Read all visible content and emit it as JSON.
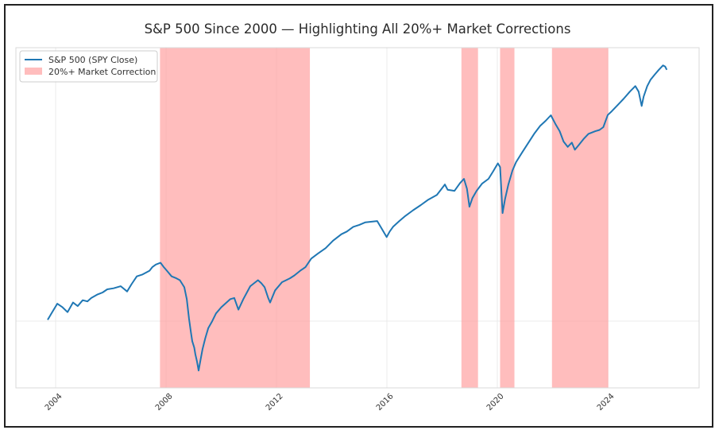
{
  "chart_data": {
    "type": "line",
    "title": "S&P 500 Since 2000 — Highlighting All 20%+ Market Corrections",
    "xlabel": "",
    "ylabel": "",
    "y_scale": "log",
    "y_tick_labels_visible": false,
    "xlim": [
      2002.56,
      2027.31
    ],
    "ylim": [
      60.6,
      779
    ],
    "y_gridlines": [
      100
    ],
    "x_ticks": [
      2004,
      2008,
      2012,
      2016,
      2020,
      2024
    ],
    "x_tick_labels": [
      "2004",
      "2008",
      "2012",
      "2016",
      "2020",
      "2024"
    ],
    "grid": true,
    "legend": {
      "placement": "top-left",
      "entries": [
        {
          "label": "S&P 500 (SPY Close)",
          "kind": "line",
          "color": "#1f77b4"
        },
        {
          "label": "20%+ Market Correction",
          "kind": "patch",
          "color": "#ff9999"
        }
      ]
    },
    "corrections": [
      {
        "start": 2007.78,
        "end": 2013.21
      },
      {
        "start": 2018.7,
        "end": 2019.3
      },
      {
        "start": 2020.1,
        "end": 2020.62
      },
      {
        "start": 2021.98,
        "end": 2024.02
      }
    ],
    "series": [
      {
        "name": "S&P 500 (SPY Close)",
        "color": "#1f77b4",
        "x": [
          2003.71,
          2003.85,
          2004.06,
          2004.25,
          2004.43,
          2004.63,
          2004.8,
          2004.98,
          2005.15,
          2005.29,
          2005.5,
          2005.7,
          2005.87,
          2006.1,
          2006.36,
          2006.59,
          2006.75,
          2006.94,
          2007.15,
          2007.4,
          2007.5,
          2007.63,
          2007.8,
          2007.92,
          2008.03,
          2008.2,
          2008.37,
          2008.5,
          2008.66,
          2008.75,
          2008.83,
          2008.9,
          2008.95,
          2009.02,
          2009.06,
          2009.12,
          2009.18,
          2009.25,
          2009.32,
          2009.42,
          2009.53,
          2009.67,
          2009.81,
          2010.0,
          2010.19,
          2010.33,
          2010.47,
          2010.62,
          2010.8,
          2011.05,
          2011.33,
          2011.45,
          2011.57,
          2011.7,
          2011.77,
          2011.95,
          2012.2,
          2012.35,
          2012.49,
          2012.65,
          2012.86,
          2013.05,
          2013.26,
          2013.5,
          2013.78,
          2014.05,
          2014.35,
          2014.55,
          2014.78,
          2015.0,
          2015.22,
          2015.45,
          2015.65,
          2015.8,
          2015.99,
          2016.1,
          2016.22,
          2016.45,
          2016.66,
          2016.95,
          2017.23,
          2017.5,
          2017.81,
          2017.98,
          2018.1,
          2018.2,
          2018.45,
          2018.65,
          2018.79,
          2018.9,
          2018.99,
          2019.1,
          2019.25,
          2019.45,
          2019.68,
          2019.85,
          2020.02,
          2020.1,
          2020.19,
          2020.28,
          2020.4,
          2020.55,
          2020.68,
          2020.9,
          2021.12,
          2021.35,
          2021.55,
          2021.75,
          2021.94,
          2022.1,
          2022.26,
          2022.4,
          2022.55,
          2022.7,
          2022.81,
          2022.95,
          2023.12,
          2023.3,
          2023.55,
          2023.7,
          2023.84,
          2024.0,
          2024.14,
          2024.35,
          2024.57,
          2024.8,
          2025.0,
          2025.12,
          2025.23,
          2025.3,
          2025.43,
          2025.55,
          2025.71,
          2025.85,
          2026.0,
          2026.08,
          2026.14
        ],
        "values": [
          101,
          106,
          114,
          111,
          107,
          115,
          112,
          117,
          116,
          119,
          122,
          124,
          127,
          128,
          130,
          125,
          132,
          140,
          142,
          146,
          150,
          153,
          155,
          150,
          146,
          140,
          138,
          136,
          129,
          118,
          102,
          92,
          86,
          82,
          78,
          74,
          69,
          75,
          81,
          88,
          95,
          100,
          106,
          111,
          115,
          118,
          119,
          109,
          118,
          130,
          136,
          133,
          129,
          119,
          115,
          126,
          134,
          136,
          138,
          141,
          146,
          150,
          160,
          166,
          173,
          183,
          192,
          196,
          203,
          206,
          210,
          211,
          212,
          201,
          188,
          196,
          203,
          212,
          220,
          230,
          239,
          249,
          258,
          270,
          279,
          268,
          266,
          282,
          291,
          270,
          236,
          252,
          266,
          281,
          291,
          308,
          327,
          318,
          225,
          250,
          279,
          310,
          330,
          355,
          381,
          410,
          433,
          450,
          469,
          440,
          416,
          385,
          370,
          382,
          362,
          375,
          392,
          408,
          416,
          420,
          429,
          470,
          483,
          505,
          530,
          560,
          584,
          560,
          503,
          540,
          584,
          612,
          638,
          660,
          682,
          676,
          660
        ]
      }
    ]
  }
}
